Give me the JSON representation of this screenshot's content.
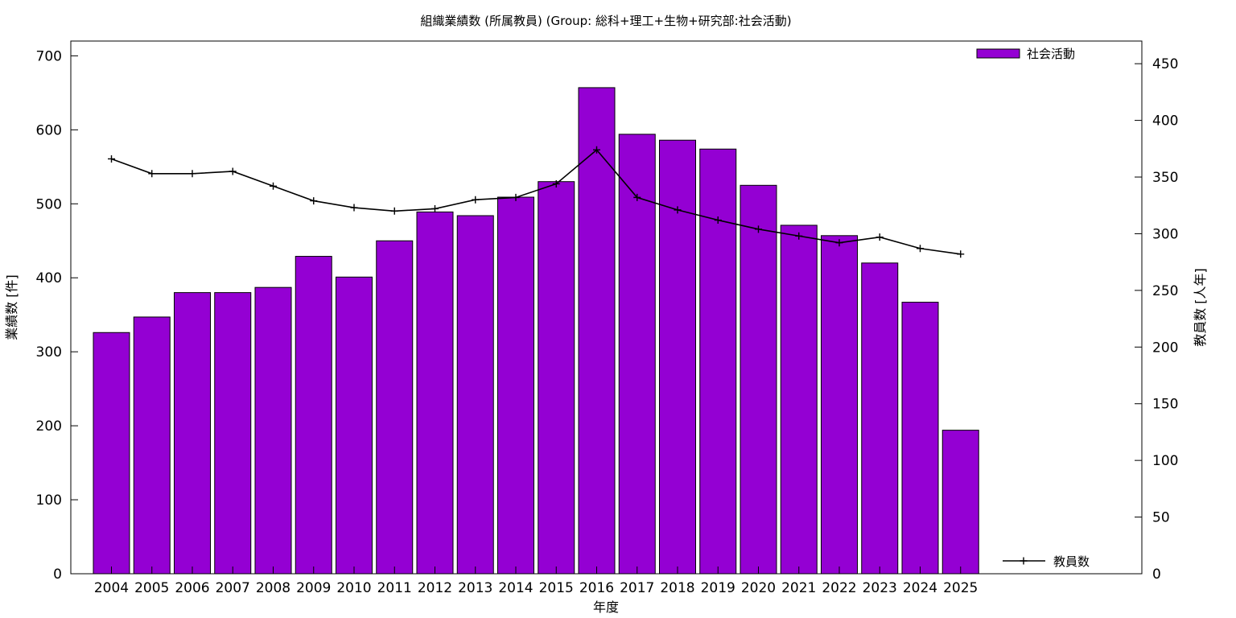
{
  "chart_data": {
    "type": "bar",
    "title": "組織業績数 (所属教員) (Group: 総科+理工+生物+研究部:社会活動)",
    "xlabel": "年度",
    "ylabel": "業績数 [件]",
    "y2label": "教員数 [人年]",
    "categories": [
      "2004",
      "2005",
      "2006",
      "2007",
      "2008",
      "2009",
      "2010",
      "2011",
      "2012",
      "2013",
      "2014",
      "2015",
      "2016",
      "2017",
      "2018",
      "2019",
      "2020",
      "2021",
      "2022",
      "2023",
      "2024",
      "2025"
    ],
    "series": [
      {
        "name": "社会活動",
        "type": "bar",
        "axis": "left",
        "color": "#9400d3",
        "values": [
          326,
          347,
          380,
          380,
          387,
          429,
          401,
          450,
          489,
          484,
          509,
          530,
          657,
          594,
          586,
          574,
          525,
          471,
          457,
          420,
          367,
          194
        ]
      },
      {
        "name": "教員数",
        "type": "line",
        "axis": "right",
        "color": "#000000",
        "values": [
          366,
          353,
          353,
          355,
          342,
          329,
          323,
          320,
          322,
          330,
          332,
          344,
          374,
          332,
          321,
          312,
          304,
          298,
          292,
          297,
          287,
          282
        ]
      }
    ],
    "ylim": [
      0,
      720
    ],
    "y2lim": [
      0,
      470
    ],
    "yticks": [
      0,
      100,
      200,
      300,
      400,
      500,
      600,
      700
    ],
    "y2ticks": [
      0,
      50,
      100,
      150,
      200,
      250,
      300,
      350,
      400,
      450
    ],
    "grid": false,
    "legend": "top-right"
  }
}
